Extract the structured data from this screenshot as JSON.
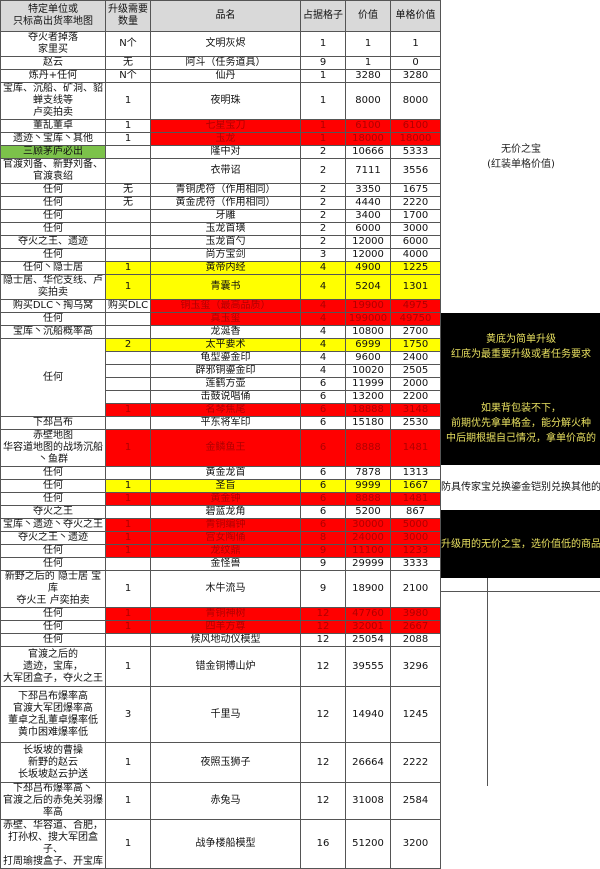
{
  "headers": [
    "特定单位或\n只标高出货率地图",
    "升级需要\n数量",
    "品名",
    "占据格子",
    "价值",
    "单格价值"
  ],
  "colors": {
    "red": "#ff0000",
    "yellow": "#ffff00",
    "green": "#7cc24a",
    "note_text": "#e8e060"
  },
  "rows": [
    {
      "location": "夺火者掉落\n家里买",
      "upgrade": "N个",
      "name": "文明灰烬",
      "slots": "1",
      "value": "1",
      "unit": "1"
    },
    {
      "location": "赵云",
      "upgrade": "无",
      "name": "阿斗（任务道具）",
      "slots": "9",
      "value": "1",
      "unit": "0"
    },
    {
      "location": "炼丹+任何",
      "upgrade": "N个",
      "name": "仙丹",
      "slots": "1",
      "value": "3280",
      "unit": "3280"
    },
    {
      "location": "宝库、沉船、矿洞、貂蝉支线等\n卢奕拍卖",
      "upgrade": "1",
      "name": "夜明珠",
      "slots": "1",
      "value": "8000",
      "unit": "8000"
    },
    {
      "location": "董乱董卓",
      "upgrade": "1",
      "name": "七星宝刀",
      "slots": "1",
      "value": "6100",
      "unit": "6100",
      "highlight": "red"
    },
    {
      "location": "遗迹丶宝库丶其他",
      "upgrade": "1",
      "name": "玉龙",
      "slots": "1",
      "value": "18000",
      "unit": "18000",
      "highlight": "red"
    },
    {
      "location": "三顾茅庐必出",
      "upgrade": "",
      "name": "隆中对",
      "slots": "2",
      "value": "10666",
      "unit": "5333",
      "location_highlight": "green"
    },
    {
      "location": "官渡刘备、新野刘备、官渡袁绍",
      "upgrade": "",
      "name": "衣带诏",
      "slots": "2",
      "value": "7111",
      "unit": "3556"
    },
    {
      "location": "任何",
      "upgrade": "无",
      "name": "青铜虎符（作用相同）",
      "slots": "2",
      "value": "3350",
      "unit": "1675"
    },
    {
      "location": "任何",
      "upgrade": "无",
      "name": "黄金虎符（作用相同）",
      "slots": "2",
      "value": "4440",
      "unit": "2220"
    },
    {
      "location": "任何",
      "upgrade": "",
      "name": "牙雕",
      "slots": "2",
      "value": "3400",
      "unit": "1700"
    },
    {
      "location": "任何",
      "upgrade": "",
      "name": "玉龙首璜",
      "slots": "2",
      "value": "6000",
      "unit": "3000"
    },
    {
      "location": "夺火之王、遗迹",
      "upgrade": "",
      "name": "玉龙首勺",
      "slots": "2",
      "value": "12000",
      "unit": "6000"
    },
    {
      "location": "任何",
      "upgrade": "",
      "name": "尚方宝剑",
      "slots": "3",
      "value": "12000",
      "unit": "4000"
    },
    {
      "location": "任何丶隐士居",
      "upgrade": "1",
      "name": "黄帝内经",
      "slots": "4",
      "value": "4900",
      "unit": "1225",
      "highlight": "yellow",
      "highlight_upgrade": true
    },
    {
      "location": "隐士居、华佗支线、卢奕拍卖",
      "upgrade": "1",
      "name": "青囊书",
      "slots": "4",
      "value": "5204",
      "unit": "1301",
      "highlight": "yellow",
      "highlight_upgrade": true
    },
    {
      "location": "购买DLC丶掏乌窝",
      "upgrade": "购买DLC",
      "name": "铜玉玺（最高品质）",
      "slots": "4",
      "value": "19900",
      "unit": "4975",
      "highlight": "red"
    },
    {
      "location": "任何",
      "upgrade": "",
      "name": "真玉玺",
      "slots": "4",
      "value": "199000",
      "unit": "49750",
      "highlight": "red"
    },
    {
      "location": "宝库丶沉船概率高",
      "upgrade": "",
      "name": "龙涎香",
      "slots": "4",
      "value": "10800",
      "unit": "2700"
    },
    {
      "location": "任何",
      "location_span": 6,
      "upgrade": "2",
      "name": "太平要术",
      "slots": "4",
      "value": "6999",
      "unit": "1750",
      "highlight": "yellow",
      "highlight_upgrade": true
    },
    {
      "upgrade": "",
      "name": "龟型鎏金印",
      "slots": "4",
      "value": "9600",
      "unit": "2400"
    },
    {
      "upgrade": "",
      "name": "辟邪铜鎏金印",
      "slots": "4",
      "value": "10020",
      "unit": "2505"
    },
    {
      "upgrade": "",
      "name": "莲鹤方壶",
      "slots": "6",
      "value": "11999",
      "unit": "2000"
    },
    {
      "upgrade": "",
      "name": "击鼓说唱俑",
      "slots": "6",
      "value": "13200",
      "unit": "2200"
    },
    {
      "upgrade": "1",
      "name": "名琴焦尾",
      "slots": "6",
      "value": "18888",
      "unit": "3148",
      "highlight": "red",
      "highlight_upgrade": true
    },
    {
      "location": "下邳吕布",
      "upgrade": "",
      "name": "平东将军印",
      "slots": "6",
      "value": "15180",
      "unit": "2530"
    },
    {
      "location": "赤壁地图\n华容道地图的战场沉船丶鱼群",
      "upgrade": "1",
      "name": "金鳞鱼王",
      "slots": "6",
      "value": "8888",
      "unit": "1481",
      "highlight": "red",
      "highlight_upgrade": true
    },
    {
      "location": "任何",
      "upgrade": "",
      "name": "黄金龙首",
      "slots": "6",
      "value": "7878",
      "unit": "1313"
    },
    {
      "location": "任何",
      "upgrade": "1",
      "name": "圣旨",
      "slots": "6",
      "value": "9999",
      "unit": "1667",
      "highlight": "yellow",
      "highlight_upgrade": true
    },
    {
      "location": "任何",
      "upgrade": "1",
      "name": "黄金钟",
      "slots": "6",
      "value": "8888",
      "unit": "1481",
      "highlight": "red",
      "highlight_upgrade": true
    },
    {
      "location": "夺火之王",
      "upgrade": "",
      "name": "碧蓝龙角",
      "slots": "6",
      "value": "5200",
      "unit": "867"
    },
    {
      "location": "宝库丶遗迹丶夺火之王",
      "upgrade": "1",
      "name": "青铜编钟",
      "slots": "6",
      "value": "30000",
      "unit": "5000",
      "highlight": "red",
      "highlight_upgrade": true
    },
    {
      "location": "夺火之王丶遗迹",
      "upgrade": "1",
      "name": "宫女陶俑",
      "slots": "8",
      "value": "24000",
      "unit": "3000",
      "highlight": "red",
      "highlight_upgrade": true
    },
    {
      "location": "任何",
      "upgrade": "1",
      "name": "龙纹鼎",
      "slots": "9",
      "value": "11100",
      "unit": "1233",
      "highlight": "red",
      "highlight_upgrade": true
    },
    {
      "location": "任何",
      "upgrade": "",
      "name": "金怪兽",
      "slots": "9",
      "value": "29999",
      "unit": "3333"
    },
    {
      "location": "新野之后的 隐士居 宝库\n夺火王 卢奕拍卖",
      "upgrade": "1",
      "name": "木牛流马",
      "slots": "9",
      "value": "18900",
      "unit": "2100"
    },
    {
      "location": "任何",
      "upgrade": "1",
      "name": "青铜神树",
      "slots": "12",
      "value": "47760",
      "unit": "3980",
      "highlight": "red",
      "highlight_upgrade": true
    },
    {
      "location": "任何",
      "upgrade": "1",
      "name": "四羊方尊",
      "slots": "12",
      "value": "32001",
      "unit": "2667",
      "highlight": "red",
      "highlight_upgrade": true
    },
    {
      "location": "任何",
      "upgrade": "",
      "name": "候风地动仪模型",
      "slots": "12",
      "value": "25054",
      "unit": "2088"
    },
    {
      "location": "官渡之后的\n遗迹，宝库，\n大军团盒子，夺火之王",
      "upgrade": "1",
      "name": "错金铜博山炉",
      "slots": "12",
      "value": "39555",
      "unit": "3296"
    },
    {
      "location": "下邳吕布爆率高\n官渡大军团爆率高\n董卓之乱董卓爆率低\n黄巾困难爆率低",
      "upgrade": "3",
      "name": "千里马",
      "slots": "12",
      "value": "14940",
      "unit": "1245"
    },
    {
      "location": "长坂坡的曹操\n新野的赵云\n长坂坡赵云护送",
      "upgrade": "1",
      "name": "夜照玉狮子",
      "slots": "12",
      "value": "26664",
      "unit": "2222"
    },
    {
      "location": "下邳吕布爆率高丶\n官渡之后的赤兔关羽爆率高",
      "upgrade": "1",
      "name": "赤兔马",
      "slots": "12",
      "value": "31008",
      "unit": "2584"
    },
    {
      "location": "赤壁、华容道、合肥，\n打孙权、搜大军团盒子、\n打周瑜搜盒子、开宝库",
      "upgrade": "1",
      "name": "战争楼船模型",
      "slots": "16",
      "value": "51200",
      "unit": "3200"
    }
  ],
  "notes": {
    "priceless": "无价之宝\n(红装单格价值)",
    "legend": "黄底为简单升级\n红底为最重要升级或者任务要求",
    "backpack": "如果背包装不下，\n前期优先拿单格金，能分解火种\n中后期根据自己情况，拿单价高的",
    "armor": "防具传家宝兑换鎏金铠别兑换其他的",
    "upgrade_priceless": "升级用的无价之宝，选价值低的商品"
  }
}
